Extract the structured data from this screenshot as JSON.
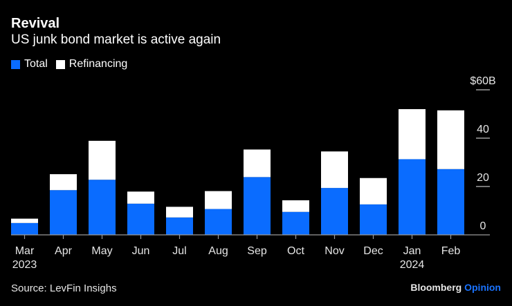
{
  "header": {
    "title": "Revival",
    "subtitle": "US junk bond market is active again"
  },
  "legend": [
    {
      "label": "Total",
      "color": "#0a6cff"
    },
    {
      "label": "Refinancing",
      "color": "#ffffff"
    }
  ],
  "footer": {
    "source": "Source: LevFin Insighs",
    "brand_main": "Bloomberg",
    "brand_accent": "Opinion"
  },
  "chart_data": {
    "type": "bar",
    "stacked": true,
    "title": "Revival",
    "subtitle": "US junk bond market is active again",
    "xlabel": "",
    "ylabel": "",
    "y_unit_label": "$60B",
    "ylim": [
      0,
      60
    ],
    "yticks": [
      0,
      20,
      40,
      60
    ],
    "ytick_labels": [
      "0",
      "20",
      "40",
      "$60B"
    ],
    "y_axis_position": "right",
    "grid": false,
    "legend_position": "top-left",
    "categories": [
      "Mar",
      "Apr",
      "May",
      "Jun",
      "Jul",
      "Aug",
      "Sep",
      "Oct",
      "Nov",
      "Dec",
      "Jan",
      "Feb"
    ],
    "category_sublabels": [
      "2023",
      "",
      "",
      "",
      "",
      "",
      "",
      "",
      "",
      "",
      "2024",
      ""
    ],
    "series": [
      {
        "name": "Total",
        "color": "#0a6cff",
        "values": [
          4.9,
          18.5,
          22.8,
          12.9,
          7.2,
          10.7,
          23.9,
          9.5,
          19.4,
          12.6,
          31.3,
          27.2
        ]
      },
      {
        "name": "Refinancing",
        "color": "#ffffff",
        "values": [
          1.8,
          6.6,
          16.1,
          5.0,
          4.4,
          7.4,
          11.4,
          4.8,
          15.1,
          10.9,
          20.7,
          24.3
        ]
      }
    ]
  }
}
